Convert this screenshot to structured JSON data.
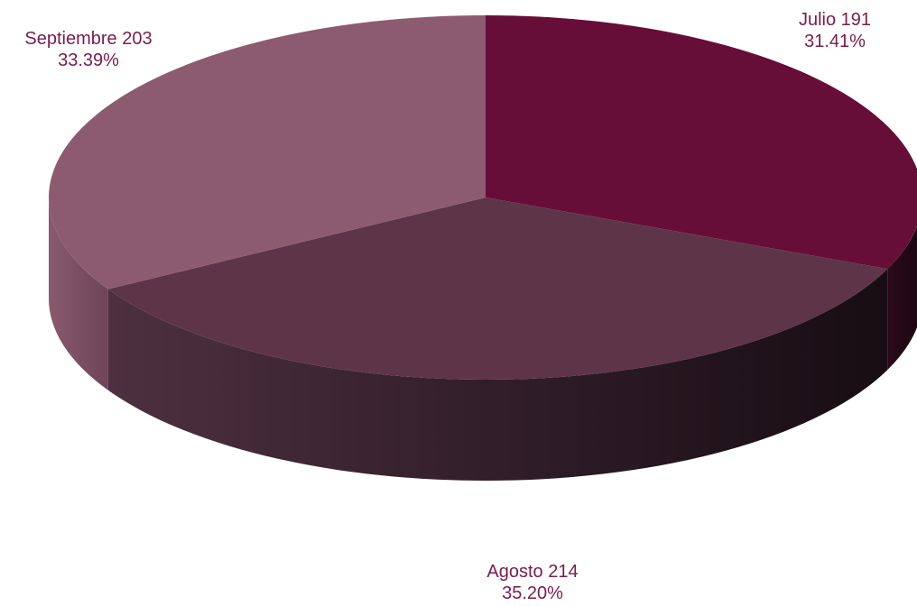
{
  "chart_data": {
    "type": "pie",
    "title": "",
    "slices": [
      {
        "label": "Julio",
        "value": 191,
        "percent": "31.41%",
        "color": "#660e38"
      },
      {
        "label": "Agosto",
        "value": 214,
        "percent": "35.20%",
        "color": "#5e3449"
      },
      {
        "label": "Septiembre",
        "value": 203,
        "percent": "33.39%",
        "color": "#8d5b6f"
      }
    ],
    "label_color": "#7b1c4b",
    "labels": [
      {
        "line1": "Julio 191",
        "line2": "31.41%"
      },
      {
        "line1": "Agosto 214",
        "line2": "35.20%"
      },
      {
        "line1": "Septiembre 203",
        "line2": "33.39%"
      }
    ]
  }
}
